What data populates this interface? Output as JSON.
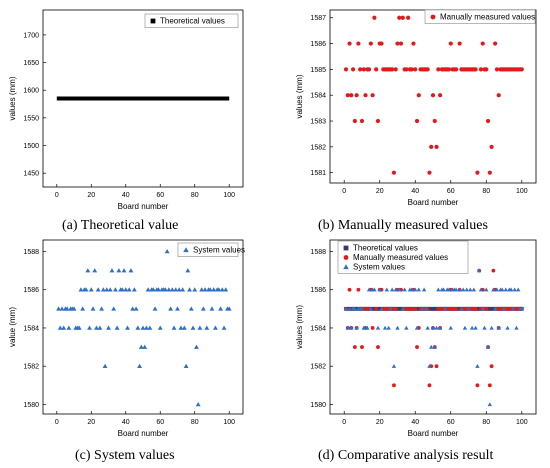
{
  "colors": {
    "theoretical": "#000000",
    "manual": "#e31a1c",
    "system": "#2f6fc9",
    "comp_square": "#3a3a6a"
  },
  "chart_data": [
    {
      "id": "a",
      "type": "line",
      "caption": "(a)   Theoretical value",
      "xlabel": "Board number",
      "ylabel": "values (mm)",
      "xlim": [
        -8,
        108
      ],
      "ylim": [
        1425,
        1745
      ],
      "xticks": [
        0,
        20,
        40,
        60,
        80,
        100
      ],
      "yticks": [
        1450,
        1500,
        1550,
        1600,
        1650,
        1700
      ],
      "legend_position": "top-right",
      "series": [
        {
          "name": "Theoretical values",
          "marker": "square",
          "color": "#000000",
          "x": [
            0,
            100
          ],
          "y": [
            1585,
            1585
          ]
        }
      ]
    },
    {
      "id": "b",
      "type": "scatter",
      "caption": "(b)   Manually measured values",
      "xlabel": "Board number",
      "ylabel": "values (mm)",
      "xlim": [
        -8,
        108
      ],
      "ylim": [
        1580.6,
        1587.3
      ],
      "xticks": [
        0,
        20,
        40,
        60,
        80,
        100
      ],
      "yticks": [
        1581,
        1582,
        1583,
        1584,
        1585,
        1586,
        1587
      ],
      "legend_position": "top-right",
      "series": [
        {
          "name": "Manually measured values",
          "marker": "circle",
          "color": "#e31a1c",
          "x": [
            1,
            2,
            3,
            4,
            5,
            6,
            7,
            8,
            9,
            10,
            11,
            12,
            13,
            14,
            15,
            16,
            17,
            18,
            19,
            20,
            21,
            22,
            23,
            24,
            25,
            26,
            27,
            28,
            29,
            30,
            31,
            32,
            33,
            34,
            35,
            36,
            37,
            38,
            39,
            40,
            41,
            42,
            43,
            44,
            45,
            46,
            47,
            48,
            49,
            50,
            51,
            52,
            53,
            54,
            55,
            56,
            57,
            58,
            59,
            60,
            61,
            62,
            63,
            64,
            65,
            66,
            67,
            68,
            69,
            70,
            71,
            72,
            73,
            74,
            75,
            76,
            77,
            78,
            79,
            80,
            81,
            82,
            83,
            84,
            85,
            86,
            87,
            88,
            89,
            90,
            91,
            92,
            93,
            94,
            95,
            96,
            97,
            98,
            99,
            100
          ],
          "y": [
            1585,
            1584,
            1586,
            1584,
            1585,
            1583,
            1584,
            1586,
            1585,
            1583,
            1585,
            1584,
            1585,
            1585,
            1586,
            1584,
            1587,
            1585,
            1583,
            1586,
            1586,
            1585,
            1585,
            1585,
            1585,
            1585,
            1585,
            1581,
            1585,
            1586,
            1587,
            1586,
            1587,
            1585,
            1585,
            1587,
            1585,
            1585,
            1586,
            1585,
            1583,
            1584,
            1585,
            1585,
            1585,
            1585,
            1585,
            1581,
            1582,
            1584,
            1583,
            1582,
            1585,
            1584,
            1585,
            1585,
            1585,
            1585,
            1585,
            1586,
            1585,
            1585,
            1585,
            1587,
            1586,
            1585,
            1585,
            1585,
            1585,
            1585,
            1585,
            1585,
            1585,
            1585,
            1581,
            1587,
            1585,
            1586,
            1585,
            1585,
            1583,
            1581,
            1582,
            1587,
            1586,
            1585,
            1584,
            1585,
            1585,
            1585,
            1585,
            1585,
            1585,
            1585,
            1585,
            1585,
            1585,
            1585,
            1585,
            1585
          ]
        }
      ]
    },
    {
      "id": "c",
      "type": "scatter",
      "caption": "(c)   System values",
      "xlabel": "Board number",
      "ylabel": "value (mm)",
      "xlim": [
        -8,
        108
      ],
      "ylim": [
        1579.5,
        1588.6
      ],
      "xticks": [
        0,
        20,
        40,
        60,
        80,
        100
      ],
      "yticks": [
        1580,
        1582,
        1584,
        1586,
        1588
      ],
      "legend_position": "top-right",
      "series": [
        {
          "name": "System values",
          "marker": "triangle",
          "color": "#2f6fc9",
          "x": [
            1,
            2,
            3,
            4,
            5,
            6,
            7,
            8,
            9,
            10,
            11,
            12,
            13,
            14,
            15,
            16,
            17,
            18,
            19,
            20,
            21,
            22,
            23,
            24,
            25,
            26,
            27,
            28,
            29,
            30,
            31,
            32,
            33,
            34,
            35,
            36,
            37,
            38,
            39,
            40,
            41,
            42,
            43,
            44,
            45,
            46,
            47,
            48,
            49,
            50,
            51,
            52,
            53,
            54,
            55,
            56,
            57,
            58,
            59,
            60,
            61,
            62,
            63,
            64,
            65,
            66,
            67,
            68,
            69,
            70,
            71,
            72,
            73,
            74,
            75,
            76,
            77,
            78,
            79,
            80,
            81,
            82,
            83,
            84,
            85,
            86,
            87,
            88,
            89,
            90,
            91,
            92,
            93,
            94,
            95,
            96,
            97,
            98,
            99,
            100
          ],
          "y": [
            1585,
            1584,
            1585,
            1584,
            1585,
            1585,
            1584,
            1585,
            1585,
            1585,
            1584,
            1584,
            1584,
            1586,
            1585,
            1586,
            1586,
            1587,
            1584,
            1586,
            1585,
            1587,
            1584,
            1586,
            1584,
            1585,
            1586,
            1582,
            1586,
            1584,
            1586,
            1587,
            1585,
            1586,
            1584,
            1587,
            1586,
            1586,
            1587,
            1586,
            1584,
            1586,
            1587,
            1585,
            1586,
            1585,
            1584,
            1582,
            1583,
            1584,
            1583,
            1584,
            1586,
            1584,
            1586,
            1586,
            1585,
            1586,
            1586,
            1584,
            1586,
            1586,
            1586,
            1588,
            1586,
            1585,
            1586,
            1584,
            1586,
            1585,
            1586,
            1584,
            1586,
            1584,
            1582,
            1587,
            1586,
            1585,
            1584,
            1586,
            1583,
            1580,
            1584,
            1586,
            1585,
            1586,
            1584,
            1586,
            1586,
            1585,
            1586,
            1584,
            1586,
            1586,
            1585,
            1586,
            1584,
            1586,
            1585,
            1585
          ]
        }
      ]
    },
    {
      "id": "d",
      "type": "scatter",
      "caption": "(d)   Comparative analysis result",
      "xlabel": "Board number",
      "ylabel": "values (mm)",
      "xlim": [
        -8,
        108
      ],
      "ylim": [
        1579.5,
        1588.6
      ],
      "xticks": [
        0,
        20,
        40,
        60,
        80,
        100
      ],
      "yticks": [
        1580,
        1582,
        1584,
        1586,
        1588
      ],
      "legend_position": "top-left",
      "series": [
        {
          "name": "Theoretical values",
          "marker": "square",
          "color": "#3a3a6a",
          "x": "all",
          "y_const": 1585
        },
        {
          "name": "Manually measured values",
          "marker": "circle",
          "color": "#e31a1c",
          "from": "b"
        },
        {
          "name": "System values",
          "marker": "triangle",
          "color": "#2f6fc9",
          "from": "c"
        }
      ]
    }
  ]
}
